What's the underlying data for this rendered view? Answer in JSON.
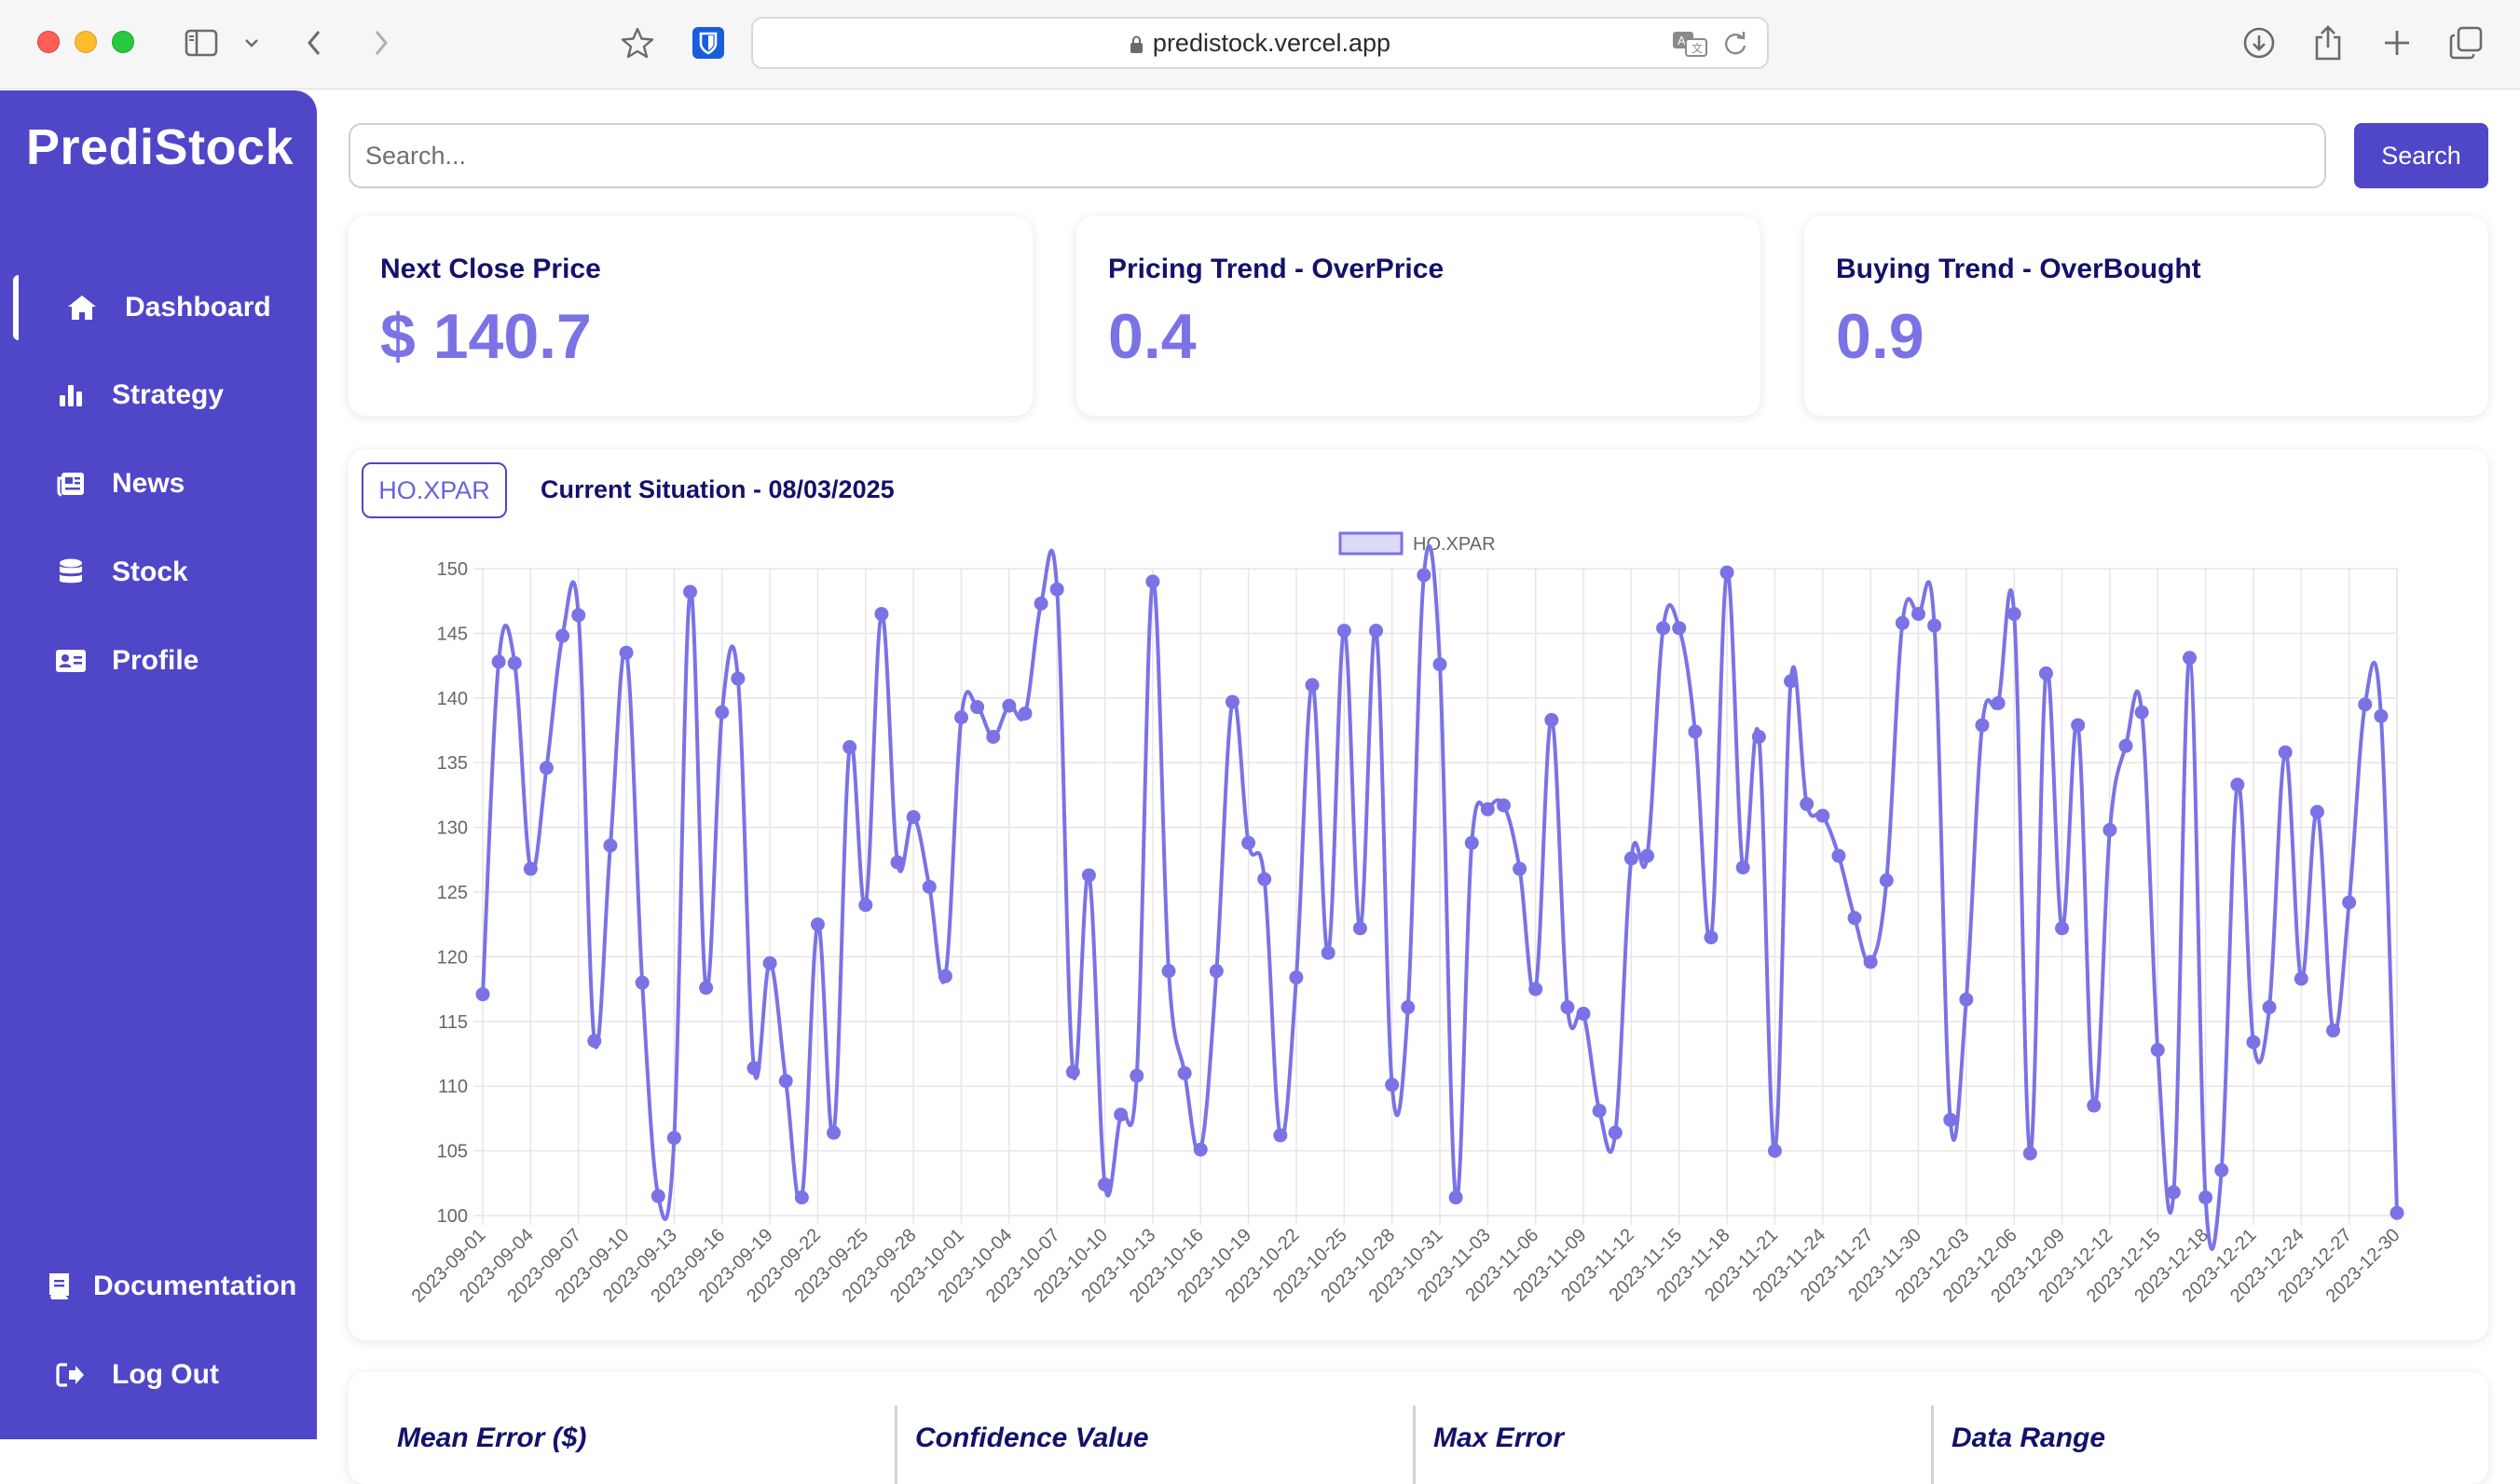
{
  "browser": {
    "url": "predistock.vercel.app"
  },
  "sidebar": {
    "brand": "PrediStock",
    "items": [
      {
        "label": "Dashboard",
        "icon": "home-icon",
        "active": true
      },
      {
        "label": "Strategy",
        "icon": "bar-chart-icon"
      },
      {
        "label": "News",
        "icon": "newspaper-icon"
      },
      {
        "label": "Stock",
        "icon": "database-icon"
      },
      {
        "label": "Profile",
        "icon": "id-card-icon"
      }
    ],
    "bottom_items": [
      {
        "label": "Documentation",
        "icon": "book-icon"
      },
      {
        "label": "Log Out",
        "icon": "logout-icon"
      }
    ]
  },
  "search": {
    "placeholder": "Search...",
    "button_label": "Search"
  },
  "kpis": [
    {
      "title": "Next Close Price",
      "value": "$ 140.7"
    },
    {
      "title": "Pricing Trend - OverPrice",
      "value": "0.4"
    },
    {
      "title": "Buying Trend - OverBought",
      "value": "0.9"
    }
  ],
  "chart_panel": {
    "ticker_label": "HO.XPAR",
    "situation": "Current Situation - 08/03/2025"
  },
  "metrics": [
    {
      "label": "Mean Error ($)"
    },
    {
      "label": "Confidence Value"
    },
    {
      "label": "Max Error"
    },
    {
      "label": "Data Range"
    }
  ],
  "colors": {
    "accent": "#4f46c8",
    "line": "#7b72e6",
    "title": "#14116b"
  },
  "chart_data": {
    "type": "line",
    "legend": [
      "HO.XPAR"
    ],
    "legend_position": "top",
    "grid": true,
    "x_start": "2023-09-01",
    "x_end": "2023-12-30",
    "x_tick_step_days": 3,
    "ylim": [
      100,
      150
    ],
    "yticks": [
      100,
      105,
      110,
      115,
      120,
      125,
      130,
      135,
      140,
      145,
      150
    ],
    "series": [
      {
        "name": "HO.XPAR",
        "values": [
          117.1,
          142.8,
          142.7,
          126.8,
          134.6,
          144.8,
          146.4,
          113.5,
          128.6,
          143.5,
          118.0,
          101.5,
          106.0,
          148.2,
          117.6,
          138.9,
          141.5,
          111.4,
          119.5,
          110.4,
          101.4,
          122.5,
          106.4,
          136.2,
          124.0,
          146.5,
          127.3,
          130.8,
          125.4,
          118.5,
          138.5,
          139.3,
          137.0,
          139.4,
          138.8,
          147.3,
          148.4,
          111.1,
          126.3,
          102.4,
          107.8,
          110.8,
          149.0,
          118.9,
          111.0,
          105.1,
          118.9,
          139.7,
          128.8,
          126.0,
          106.2,
          118.4,
          141.0,
          120.3,
          145.2,
          122.2,
          145.2,
          110.1,
          116.1,
          149.5,
          142.6,
          101.4,
          128.8,
          131.4,
          131.7,
          126.8,
          117.5,
          138.3,
          116.1,
          115.6,
          108.1,
          106.4,
          127.6,
          127.8,
          145.4,
          145.4,
          137.4,
          121.5,
          149.7,
          126.9,
          137.0,
          105.0,
          141.3,
          131.8,
          130.9,
          127.8,
          123.0,
          119.6,
          125.9,
          145.8,
          146.5,
          145.6,
          107.4,
          116.7,
          137.9,
          139.6,
          146.5,
          104.8,
          141.9,
          122.2,
          137.9,
          108.5,
          129.8,
          136.3,
          138.9,
          112.8,
          101.8,
          143.1,
          101.4,
          103.5,
          133.3,
          113.4,
          116.1,
          135.8,
          118.3,
          131.2,
          114.3,
          124.2,
          139.5,
          138.6,
          100.2
        ]
      }
    ]
  }
}
